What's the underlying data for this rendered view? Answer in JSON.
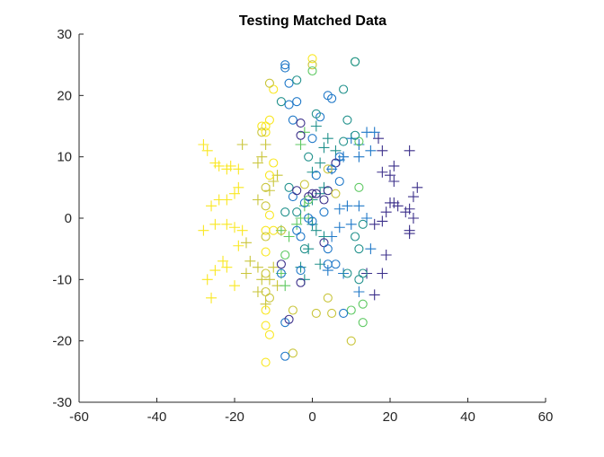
{
  "chart_data": {
    "type": "scatter",
    "title": "Testing Matched Data",
    "xlabel": "",
    "ylabel": "",
    "xlim": [
      -60,
      60
    ],
    "ylim": [
      -30,
      30
    ],
    "xticks": [
      -60,
      -40,
      -20,
      0,
      20,
      40,
      60
    ],
    "yticks": [
      -30,
      -20,
      -10,
      0,
      10,
      20,
      30
    ],
    "grid": false,
    "legend": false,
    "colormap": [
      "#f9e721",
      "#c9c53a",
      "#5ec962",
      "#21918c",
      "#1f78c8",
      "#3b2f8a"
    ],
    "series": [
      {
        "marker": "plus",
        "points": [
          [
            -28,
            12,
            0
          ],
          [
            -27,
            11,
            0
          ],
          [
            -25,
            9,
            0
          ],
          [
            -24,
            8.5,
            0
          ],
          [
            -22,
            8,
            0
          ],
          [
            -21,
            8.5,
            0
          ],
          [
            -19,
            8,
            0
          ],
          [
            -18,
            12,
            1
          ],
          [
            -26,
            2,
            0
          ],
          [
            -24,
            3,
            0
          ],
          [
            -22,
            3,
            0
          ],
          [
            -20,
            4,
            0
          ],
          [
            -19,
            5,
            0
          ],
          [
            -14,
            9,
            1
          ],
          [
            -13,
            10,
            1
          ],
          [
            -12,
            12,
            1
          ],
          [
            -14,
            3,
            1
          ],
          [
            -11,
            4.5,
            1
          ],
          [
            -10,
            6,
            1
          ],
          [
            -9,
            7,
            1
          ],
          [
            -28,
            -2,
            0
          ],
          [
            -25,
            -1,
            0
          ],
          [
            -22,
            -1,
            0
          ],
          [
            -20,
            -1.5,
            0
          ],
          [
            -18,
            -2,
            0
          ],
          [
            -17,
            -4,
            1
          ],
          [
            -19,
            -4.5,
            0
          ],
          [
            -23,
            -7,
            0
          ],
          [
            -25,
            -8.5,
            0
          ],
          [
            -27,
            -10,
            0
          ],
          [
            -26,
            -13,
            0
          ],
          [
            -22,
            -8,
            0
          ],
          [
            -20,
            -11,
            0
          ],
          [
            -17,
            -9,
            1
          ],
          [
            -16,
            -7,
            1
          ],
          [
            -14,
            -8,
            1
          ],
          [
            -13,
            -10,
            1
          ],
          [
            -11,
            -10,
            1
          ],
          [
            -10,
            -8,
            1
          ],
          [
            -9,
            -11,
            1
          ],
          [
            -14,
            -12,
            1
          ],
          [
            -12,
            -14,
            1
          ],
          [
            -8,
            -9,
            2
          ],
          [
            -7,
            -11,
            2
          ],
          [
            -8,
            -2,
            2
          ],
          [
            -6,
            -3,
            2
          ],
          [
            -4,
            -1,
            2
          ],
          [
            -3,
            0,
            2
          ],
          [
            -1,
            0,
            2
          ],
          [
            0,
            -1,
            3
          ],
          [
            -2,
            2,
            2
          ],
          [
            0,
            3,
            3
          ],
          [
            2,
            4,
            3
          ],
          [
            3,
            5,
            3
          ],
          [
            0,
            7.5,
            3
          ],
          [
            2,
            9,
            3
          ],
          [
            3,
            11.5,
            3
          ],
          [
            6,
            11,
            3
          ],
          [
            7,
            9.5,
            4
          ],
          [
            8,
            10,
            4
          ],
          [
            5,
            8,
            4
          ],
          [
            -2,
            14,
            2
          ],
          [
            -3,
            12,
            2
          ],
          [
            1,
            15,
            3
          ],
          [
            4,
            13,
            3
          ],
          [
            10,
            13,
            4
          ],
          [
            12,
            12,
            4
          ],
          [
            14,
            14,
            4
          ],
          [
            16,
            14,
            4
          ],
          [
            17,
            13,
            5
          ],
          [
            18,
            11,
            5
          ],
          [
            15,
            11,
            4
          ],
          [
            12,
            10,
            4
          ],
          [
            18,
            7.5,
            5
          ],
          [
            20,
            7,
            5
          ],
          [
            21,
            8.5,
            5
          ],
          [
            21,
            6,
            5
          ],
          [
            25,
            11,
            5
          ],
          [
            27,
            5,
            5
          ],
          [
            26,
            3.5,
            5
          ],
          [
            25,
            1.5,
            5
          ],
          [
            26,
            0,
            5
          ],
          [
            24,
            1,
            5
          ],
          [
            21,
            2.5,
            5
          ],
          [
            22,
            2,
            5
          ],
          [
            20,
            2.5,
            5
          ],
          [
            19,
            1,
            5
          ],
          [
            18,
            -0.5,
            5
          ],
          [
            16,
            -1,
            5
          ],
          [
            14,
            0,
            4
          ],
          [
            12,
            2,
            4
          ],
          [
            9,
            2,
            4
          ],
          [
            7,
            1.5,
            4
          ],
          [
            10,
            -1,
            4
          ],
          [
            7,
            -1.5,
            4
          ],
          [
            5,
            -3,
            4
          ],
          [
            3,
            -3,
            3
          ],
          [
            1,
            -2,
            3
          ],
          [
            -1,
            -5,
            3
          ],
          [
            2,
            -7.5,
            3
          ],
          [
            4,
            -8.5,
            4
          ],
          [
            8,
            -9,
            4
          ],
          [
            14,
            -9,
            5
          ],
          [
            18,
            -9,
            5
          ],
          [
            15,
            -5,
            4
          ],
          [
            19,
            -6,
            5
          ],
          [
            12,
            -12,
            4
          ],
          [
            16,
            -12.5,
            5
          ],
          [
            25,
            -2,
            5
          ],
          [
            25,
            -2.5,
            5
          ],
          [
            -3,
            -8,
            3
          ],
          [
            -2,
            -10,
            3
          ]
        ]
      },
      {
        "marker": "circle",
        "points": [
          [
            0,
            26,
            0
          ],
          [
            0,
            25,
            1
          ],
          [
            0,
            24,
            2
          ],
          [
            -7,
            25,
            4
          ],
          [
            -7,
            24.5,
            4
          ],
          [
            -6,
            22,
            4
          ],
          [
            -4,
            22.5,
            3
          ],
          [
            -8,
            19,
            3
          ],
          [
            -6,
            18.5,
            4
          ],
          [
            -4,
            19,
            4
          ],
          [
            -10,
            21,
            0
          ],
          [
            -11,
            22,
            1
          ],
          [
            -11,
            16,
            0
          ],
          [
            -12,
            15,
            0
          ],
          [
            -13,
            15,
            0
          ],
          [
            -12,
            14,
            0
          ],
          [
            -13,
            14,
            1
          ],
          [
            -11,
            7,
            0
          ],
          [
            -10,
            9,
            0
          ],
          [
            -12,
            5,
            1
          ],
          [
            -12,
            2,
            1
          ],
          [
            -11,
            0.5,
            0
          ],
          [
            -10,
            -2,
            0
          ],
          [
            -12,
            -2,
            0
          ],
          [
            -12,
            -3,
            1
          ],
          [
            -8,
            -2,
            1
          ],
          [
            -7,
            -6,
            2
          ],
          [
            -12,
            -5.5,
            0
          ],
          [
            -12,
            -9,
            1
          ],
          [
            -12,
            -12,
            1
          ],
          [
            -11,
            -13,
            1
          ],
          [
            -12,
            -15,
            0
          ],
          [
            -12,
            -17.5,
            0
          ],
          [
            -11,
            -19,
            0
          ],
          [
            -12,
            -23.5,
            0
          ],
          [
            -5,
            -22,
            1
          ],
          [
            -7,
            -22.5,
            4
          ],
          [
            -7,
            -17,
            4
          ],
          [
            -6,
            -16.5,
            5
          ],
          [
            -5,
            -15,
            1
          ],
          [
            -5,
            16,
            4
          ],
          [
            -3,
            15.5,
            5
          ],
          [
            -3,
            13.5,
            5
          ],
          [
            0,
            13,
            4
          ],
          [
            -1,
            10,
            3
          ],
          [
            2,
            16.5,
            4
          ],
          [
            1,
            17,
            3
          ],
          [
            4,
            20,
            4
          ],
          [
            5,
            19.5,
            4
          ],
          [
            8,
            21,
            3
          ],
          [
            11,
            25.5,
            2
          ],
          [
            11,
            25.5,
            3
          ],
          [
            9,
            16,
            3
          ],
          [
            8,
            12.5,
            3
          ],
          [
            12,
            12.5,
            2
          ],
          [
            11,
            13.5,
            3
          ],
          [
            7,
            10,
            4
          ],
          [
            6,
            9,
            5
          ],
          [
            5,
            8,
            4
          ],
          [
            4,
            8,
            1
          ],
          [
            4,
            4.5,
            5
          ],
          [
            3,
            3,
            5
          ],
          [
            3,
            1,
            4
          ],
          [
            1,
            4,
            5
          ],
          [
            0,
            4,
            5
          ],
          [
            -1,
            3.5,
            5
          ],
          [
            -2,
            2.5,
            4
          ],
          [
            -5,
            3.5,
            4
          ],
          [
            -6,
            5,
            3
          ],
          [
            -4,
            4.5,
            5
          ],
          [
            -2,
            5.5,
            1
          ],
          [
            -1,
            3,
            2
          ],
          [
            1,
            7,
            4
          ],
          [
            -4,
            -2,
            4
          ],
          [
            -3,
            -3,
            4
          ],
          [
            -2,
            -5,
            3
          ],
          [
            -1,
            0,
            4
          ],
          [
            0,
            -0.5,
            4
          ],
          [
            -4,
            1,
            3
          ],
          [
            -7,
            1,
            3
          ],
          [
            -8,
            -7.5,
            5
          ],
          [
            -8,
            -9,
            4
          ],
          [
            -3,
            -8.5,
            4
          ],
          [
            -3,
            -10.5,
            5
          ],
          [
            3,
            -4,
            5
          ],
          [
            4,
            -5,
            4
          ],
          [
            4,
            -7.5,
            4
          ],
          [
            6,
            -7.5,
            4
          ],
          [
            9,
            -9,
            3
          ],
          [
            13,
            -9,
            3
          ],
          [
            12,
            -10,
            3
          ],
          [
            13,
            -14,
            2
          ],
          [
            13,
            -17,
            2
          ],
          [
            10,
            -20,
            1
          ],
          [
            10,
            -15,
            2
          ],
          [
            8,
            -15.5,
            4
          ],
          [
            5,
            -15.5,
            1
          ],
          [
            1,
            -15.5,
            1
          ],
          [
            4,
            -13,
            1
          ],
          [
            12,
            -5,
            3
          ],
          [
            11,
            -3,
            3
          ],
          [
            13,
            -1,
            3
          ],
          [
            12,
            5,
            2
          ],
          [
            6,
            4,
            1
          ],
          [
            7,
            6,
            4
          ]
        ]
      }
    ]
  }
}
